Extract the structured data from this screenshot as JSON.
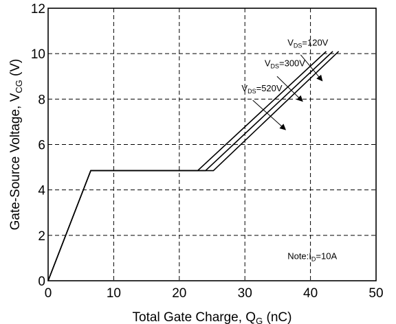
{
  "chart_data": {
    "type": "line",
    "xlabel": {
      "main": "Total Gate Charge, Q",
      "sub": "G",
      "unit": " (nC)"
    },
    "ylabel": {
      "main": "Gate-Source Voltage, V",
      "sub": "CG",
      "unit": " (V)"
    },
    "xlim": [
      0,
      50
    ],
    "ylim": [
      0,
      12
    ],
    "x_ticks": [
      "0",
      "10",
      "20",
      "30",
      "40",
      "50"
    ],
    "y_ticks": [
      "0",
      "2",
      "4",
      "6",
      "8",
      "10",
      "12"
    ],
    "grid": true,
    "grid_style": "dashed",
    "note": {
      "prefix": "Note:I",
      "sub": "D",
      "suffix": "=10A"
    },
    "series": [
      {
        "label_main": "V",
        "label_sub": "DS",
        "label_value": "=120V",
        "x": [
          0,
          6.5,
          22.8,
          42.4
        ],
        "y": [
          0,
          4.85,
          4.85,
          10.1
        ]
      },
      {
        "label_main": "V",
        "label_sub": "DS",
        "label_value": "=300V",
        "x": [
          0,
          6.5,
          24.0,
          43.4
        ],
        "y": [
          0,
          4.85,
          4.85,
          10.1
        ]
      },
      {
        "label_main": "V",
        "label_sub": "DS",
        "label_value": "=520V",
        "x": [
          0,
          6.5,
          25.2,
          44.3
        ],
        "y": [
          0,
          4.85,
          4.85,
          10.1
        ]
      }
    ],
    "annotations": [
      {
        "series_index": 0,
        "label_at": [
          36.5,
          10.35
        ],
        "arrow_from": [
          38.5,
          9.95
        ],
        "arrow_to": [
          41.8,
          8.8
        ]
      },
      {
        "series_index": 1,
        "label_at": [
          33.0,
          9.45
        ],
        "arrow_from": [
          34.9,
          9.0
        ],
        "arrow_to": [
          38.8,
          7.9
        ]
      },
      {
        "series_index": 2,
        "label_at": [
          29.5,
          8.35
        ],
        "arrow_from": [
          31.2,
          7.95
        ],
        "arrow_to": [
          36.2,
          6.65
        ]
      }
    ]
  }
}
